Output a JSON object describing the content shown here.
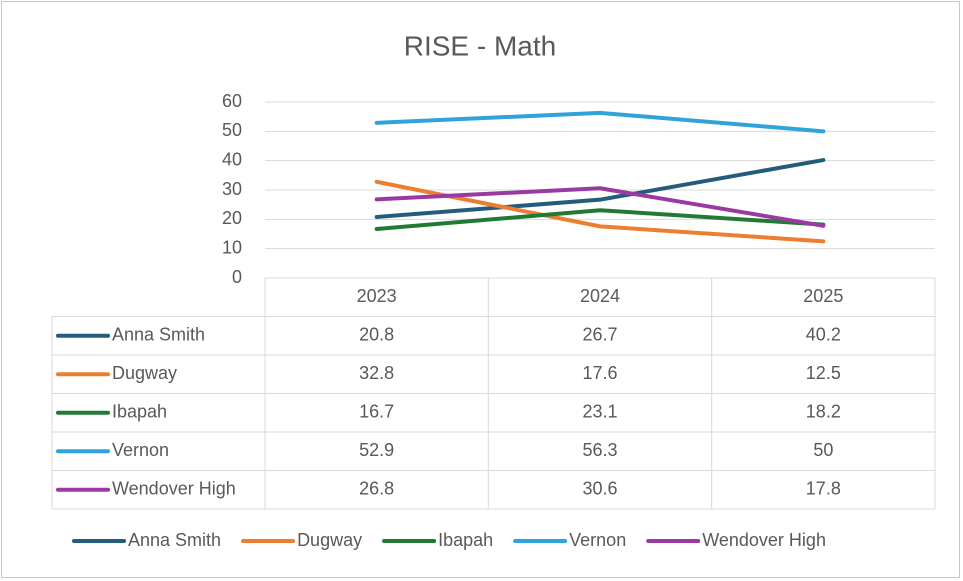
{
  "chart_data": {
    "type": "line",
    "title": "RISE - Math",
    "categories": [
      "2023",
      "2024",
      "2025"
    ],
    "series": [
      {
        "name": "Anna Smith",
        "color": "#235d7c",
        "values": [
          20.8,
          26.7,
          40.2
        ]
      },
      {
        "name": "Dugway",
        "color": "#ed7d31",
        "values": [
          32.8,
          17.6,
          12.5
        ]
      },
      {
        "name": "Ibapah",
        "color": "#217a33",
        "values": [
          16.7,
          23.1,
          18.2
        ]
      },
      {
        "name": "Vernon",
        "color": "#2ea3dc",
        "values": [
          52.9,
          56.3,
          50
        ]
      },
      {
        "name": "Wendover High",
        "color": "#9b39a3",
        "values": [
          26.8,
          30.6,
          17.8
        ]
      }
    ],
    "ylim": [
      0,
      60
    ],
    "yticks": [
      0,
      10,
      20,
      30,
      40,
      50,
      60
    ],
    "grid": true,
    "legend": "bottom",
    "data_table": true
  }
}
